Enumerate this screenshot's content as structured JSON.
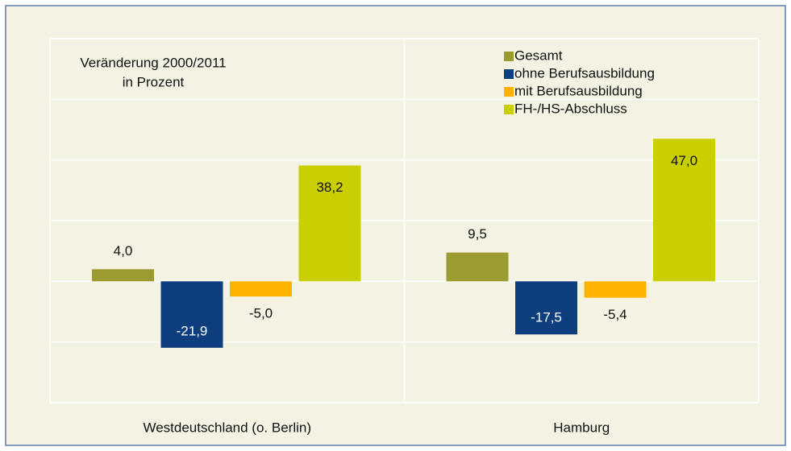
{
  "chart_data": {
    "type": "bar",
    "annotation": [
      "Veränderung 2000/2011",
      "in Prozent"
    ],
    "categories": [
      "Westdeutschland (o. Berlin)",
      "Hamburg"
    ],
    "series": [
      {
        "name": "Gesamt",
        "color": "#9b9b30",
        "values": [
          4.0,
          9.5
        ],
        "value_labels": [
          "4,0",
          "9,5"
        ]
      },
      {
        "name": "ohne Berufsausbildung",
        "color": "#0e3e7d",
        "values": [
          -21.9,
          -17.5
        ],
        "value_labels": [
          "-21,9",
          "-17,5"
        ]
      },
      {
        "name": "mit Berufsausbildung",
        "color": "#ffb300",
        "values": [
          -5.0,
          -5.4
        ],
        "value_labels": [
          "-5,0",
          "-5,4"
        ]
      },
      {
        "name": "FH-/HS-Abschluss",
        "color": "#c9cf00",
        "values": [
          38.2,
          47.0
        ],
        "value_labels": [
          "38,2",
          "47,0"
        ]
      }
    ],
    "ylim": [
      -40,
      80
    ],
    "yticks": [
      -40,
      -20,
      0,
      20,
      40,
      60,
      80
    ],
    "grid": true,
    "legend": "top-right"
  }
}
